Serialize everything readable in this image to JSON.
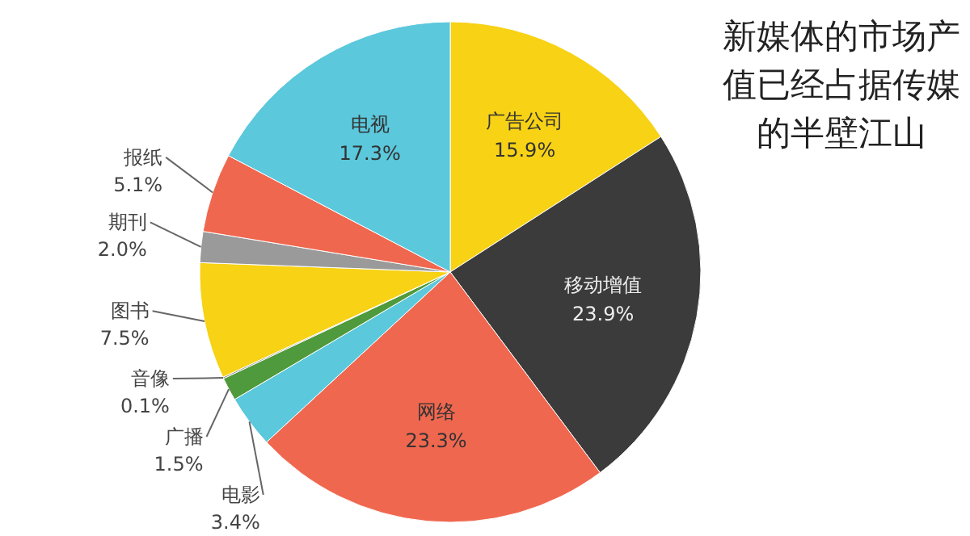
{
  "chart_data": {
    "type": "pie",
    "title": "新媒体的市场产值已经占据传媒的半壁江山",
    "categories": [
      "广告公司",
      "移动增值",
      "网络",
      "电影",
      "广播",
      "音像",
      "图书",
      "期刊",
      "报纸",
      "电视"
    ],
    "values": [
      15.9,
      23.9,
      23.3,
      3.4,
      1.5,
      0.1,
      7.5,
      2.0,
      5.1,
      17.3
    ],
    "value_labels": [
      "15.9%",
      "23.9%",
      "23.3%",
      "3.4%",
      "1.5%",
      "0.1%",
      "7.5%",
      "2.0%",
      "5.1%",
      "17.3%"
    ],
    "colors": [
      "#f7d215",
      "#3b3b3b",
      "#f0674f",
      "#5bc8dc",
      "#4f9a3c",
      "#8a8a8a",
      "#f7d215",
      "#9a9a9a",
      "#f0674f",
      "#5bc8dc"
    ],
    "legend": false
  }
}
